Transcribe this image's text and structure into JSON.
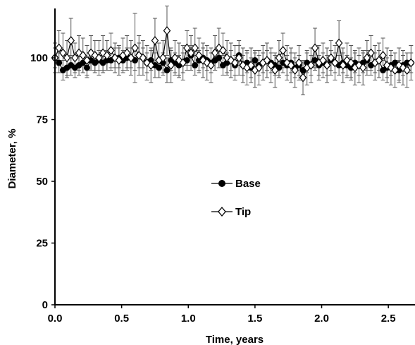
{
  "chart_data": {
    "type": "scatter",
    "xlabel": "Time, years",
    "ylabel": "Diameter, %",
    "xlim": [
      0,
      2.7
    ],
    "ylim": [
      0,
      120
    ],
    "x_ticks": [
      "0.0",
      "0.5",
      "1.0",
      "1.5",
      "2.0",
      "2.5"
    ],
    "y_ticks": [
      "0",
      "25",
      "50",
      "75",
      "100"
    ],
    "legend_position": "center",
    "series": [
      {
        "name": "Base",
        "marker": "filled-circle",
        "color": "#000000",
        "x": [
          0.0,
          0.03,
          0.06,
          0.09,
          0.12,
          0.15,
          0.18,
          0.21,
          0.24,
          0.27,
          0.3,
          0.33,
          0.36,
          0.39,
          0.42,
          0.45,
          0.48,
          0.51,
          0.54,
          0.57,
          0.6,
          0.63,
          0.66,
          0.69,
          0.72,
          0.75,
          0.78,
          0.81,
          0.84,
          0.87,
          0.9,
          0.93,
          0.96,
          0.99,
          1.02,
          1.05,
          1.08,
          1.11,
          1.14,
          1.17,
          1.2,
          1.23,
          1.26,
          1.29,
          1.32,
          1.35,
          1.38,
          1.41,
          1.44,
          1.47,
          1.5,
          1.53,
          1.56,
          1.59,
          1.62,
          1.65,
          1.68,
          1.71,
          1.74,
          1.77,
          1.8,
          1.83,
          1.86,
          1.89,
          1.92,
          1.95,
          1.98,
          2.01,
          2.04,
          2.07,
          2.1,
          2.13,
          2.16,
          2.19,
          2.22,
          2.25,
          2.28,
          2.31,
          2.34,
          2.37,
          2.4,
          2.43,
          2.46,
          2.49,
          2.52,
          2.55,
          2.58,
          2.61,
          2.64,
          2.67
        ],
        "y": [
          100,
          98,
          95,
          96,
          97,
          96,
          97,
          98,
          96,
          99,
          98,
          99,
          98,
          99,
          99,
          100,
          100,
          99,
          100,
          100,
          99,
          101,
          100,
          98,
          99,
          97,
          96,
          98,
          95,
          99,
          98,
          97,
          98,
          99,
          101,
          97,
          99,
          100,
          99,
          98,
          99,
          100,
          97,
          98,
          99,
          97,
          101,
          97,
          98,
          96,
          99,
          97,
          98,
          99,
          98,
          97,
          96,
          98,
          97,
          98,
          96,
          97,
          95,
          98,
          97,
          99,
          97,
          98,
          97,
          99,
          98,
          97,
          98,
          97,
          96,
          98,
          97,
          98,
          99,
          97,
          98,
          99,
          95,
          96,
          97,
          98,
          95,
          97,
          98,
          98
        ],
        "error": [
          4,
          4,
          4,
          4,
          4,
          4,
          4,
          4,
          4,
          4,
          4,
          4,
          4,
          4,
          4,
          4,
          4,
          4,
          4,
          4,
          4,
          5,
          4,
          4,
          4,
          5,
          4,
          4,
          5,
          4,
          4,
          4,
          4,
          4,
          4,
          4,
          4,
          4,
          4,
          4,
          4,
          4,
          4,
          4,
          4,
          4,
          4,
          4,
          4,
          4,
          4,
          4,
          4,
          4,
          4,
          4,
          4,
          4,
          4,
          4,
          4,
          4,
          4,
          4,
          4,
          4,
          4,
          4,
          4,
          4,
          4,
          4,
          4,
          4,
          4,
          4,
          4,
          4,
          4,
          4,
          4,
          4,
          4,
          4,
          4,
          4,
          4,
          4,
          4,
          4
        ]
      },
      {
        "name": "Tip",
        "marker": "open-diamond",
        "color": "#000000",
        "x": [
          0.0,
          0.03,
          0.06,
          0.09,
          0.12,
          0.15,
          0.18,
          0.21,
          0.24,
          0.27,
          0.3,
          0.33,
          0.36,
          0.39,
          0.42,
          0.45,
          0.48,
          0.51,
          0.54,
          0.57,
          0.6,
          0.63,
          0.66,
          0.69,
          0.72,
          0.75,
          0.78,
          0.81,
          0.84,
          0.87,
          0.9,
          0.93,
          0.96,
          0.99,
          1.02,
          1.05,
          1.08,
          1.11,
          1.14,
          1.17,
          1.2,
          1.23,
          1.26,
          1.29,
          1.32,
          1.35,
          1.38,
          1.41,
          1.44,
          1.47,
          1.5,
          1.53,
          1.56,
          1.59,
          1.62,
          1.65,
          1.68,
          1.71,
          1.74,
          1.77,
          1.8,
          1.83,
          1.86,
          1.89,
          1.92,
          1.95,
          1.98,
          2.01,
          2.04,
          2.07,
          2.1,
          2.13,
          2.16,
          2.19,
          2.22,
          2.25,
          2.28,
          2.31,
          2.34,
          2.37,
          2.4,
          2.43,
          2.46,
          2.49,
          2.52,
          2.55,
          2.58,
          2.61,
          2.64,
          2.67
        ],
        "y": [
          100,
          104,
          102,
          100,
          107,
          100,
          102,
          101,
          99,
          102,
          101,
          100,
          102,
          101,
          103,
          100,
          99,
          101,
          102,
          100,
          104,
          101,
          100,
          98,
          97,
          107,
          99,
          100,
          111,
          97,
          100,
          99,
          98,
          104,
          102,
          104,
          101,
          99,
          98,
          97,
          102,
          104,
          103,
          100,
          99,
          98,
          100,
          97,
          96,
          97,
          95,
          96,
          98,
          99,
          97,
          95,
          100,
          103,
          98,
          97,
          95,
          98,
          92,
          96,
          97,
          104,
          98,
          99,
          97,
          100,
          98,
          106,
          97,
          99,
          98,
          96,
          97,
          96,
          100,
          102,
          98,
          99,
          101,
          97,
          96,
          95,
          97,
          96,
          95,
          98
        ],
        "error": [
          6,
          7,
          8,
          7,
          9,
          6,
          7,
          7,
          6,
          7,
          6,
          7,
          7,
          6,
          7,
          6,
          6,
          7,
          7,
          7,
          14,
          8,
          7,
          7,
          7,
          9,
          7,
          7,
          10,
          7,
          7,
          7,
          7,
          7,
          7,
          8,
          7,
          7,
          7,
          7,
          7,
          8,
          7,
          7,
          7,
          7,
          7,
          7,
          7,
          7,
          7,
          7,
          7,
          7,
          7,
          7,
          7,
          7,
          7,
          7,
          7,
          7,
          7,
          7,
          7,
          8,
          7,
          7,
          7,
          7,
          7,
          9,
          7,
          7,
          7,
          7,
          7,
          7,
          7,
          7,
          7,
          7,
          7,
          7,
          7,
          7,
          7,
          7,
          7,
          7
        ]
      }
    ]
  }
}
